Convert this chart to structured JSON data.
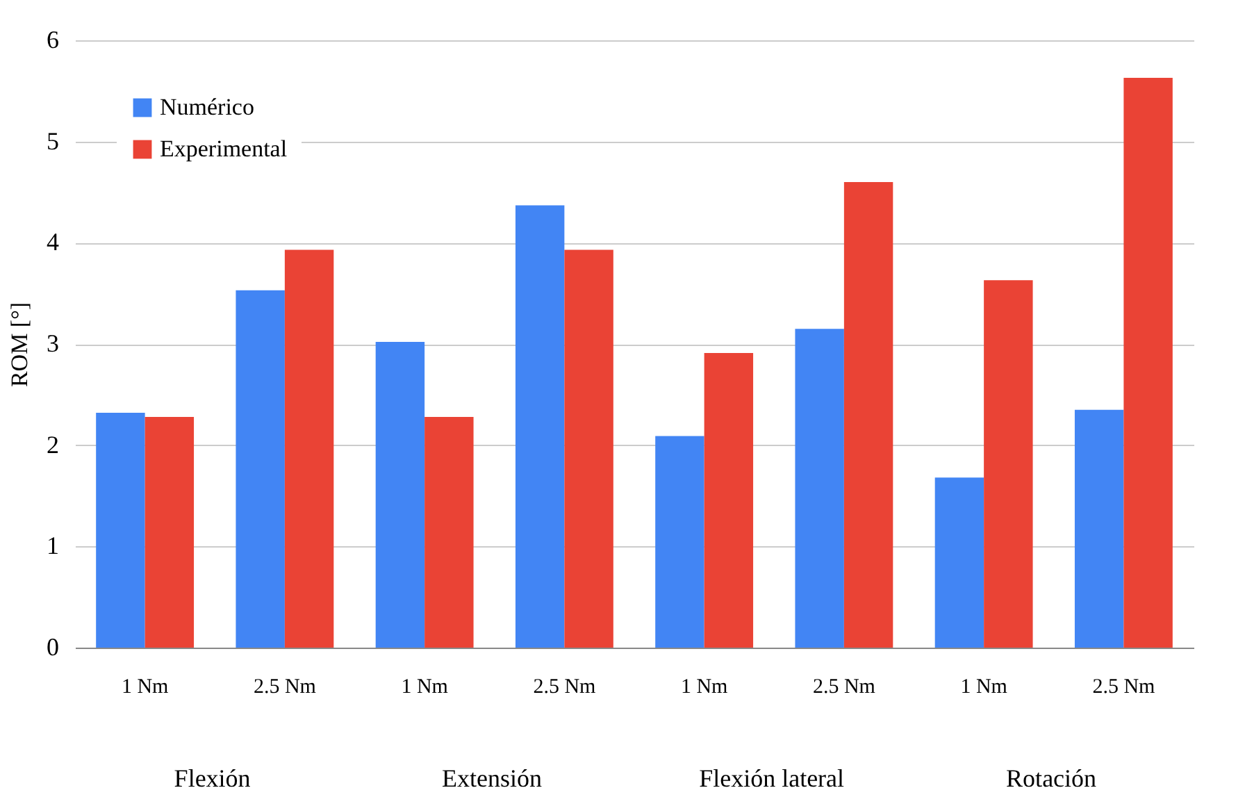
{
  "chart_data": {
    "type": "bar",
    "ylabel": "ROM [°]",
    "categories": [
      "1 Nm",
      "2.5 Nm",
      "1 Nm",
      "2.5 Nm",
      "1 Nm",
      "2.5 Nm",
      "1 Nm",
      "2.5 Nm"
    ],
    "series": [
      {
        "name": "Numérico",
        "color": "#4285f4",
        "values": [
          2.32,
          3.53,
          3.02,
          4.37,
          2.09,
          3.15,
          1.68,
          2.35
        ]
      },
      {
        "name": "Experimental",
        "color": "#ea4335",
        "values": [
          2.28,
          3.93,
          2.28,
          3.93,
          2.91,
          4.6,
          3.63,
          5.63
        ]
      }
    ],
    "annotations": [
      "Flexión",
      "Extensión",
      "Flexión lateral",
      "Rotación"
    ],
    "ylim": [
      0,
      6
    ],
    "yticks": [
      0,
      1,
      2,
      3,
      4,
      5,
      6
    ],
    "grid": "y",
    "legend": "top left"
  }
}
